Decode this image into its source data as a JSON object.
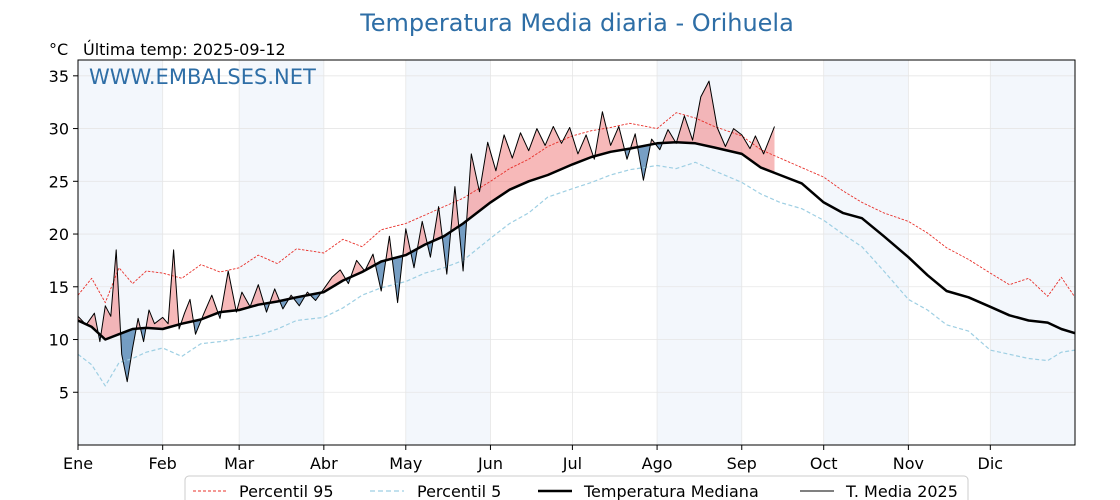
{
  "chart_data": {
    "type": "line",
    "title": "Temperatura Media diaria - Orihuela",
    "unit_label": "°C",
    "last_temp_label": "Última temp: 2025-09-12",
    "watermark": "WWW.EMBALSES.NET",
    "ylim": [
      0,
      36.5
    ],
    "xlim": [
      0,
      365
    ],
    "y_ticks": [
      5,
      10,
      15,
      20,
      25,
      30,
      35
    ],
    "months": [
      {
        "label": "Ene",
        "day": 0
      },
      {
        "label": "Feb",
        "day": 31
      },
      {
        "label": "Mar",
        "day": 59
      },
      {
        "label": "Abr",
        "day": 90
      },
      {
        "label": "May",
        "day": 120
      },
      {
        "label": "Jun",
        "day": 151
      },
      {
        "label": "Jul",
        "day": 181
      },
      {
        "label": "Ago",
        "day": 212
      },
      {
        "label": "Sep",
        "day": 243
      },
      {
        "label": "Oct",
        "day": 273
      },
      {
        "label": "Nov",
        "day": 304
      },
      {
        "label": "Dic",
        "day": 334
      }
    ],
    "shaded_month_indices": [
      0,
      2,
      4,
      7,
      9,
      11
    ],
    "grid": true,
    "legend_position": "bottom",
    "colors": {
      "p95": "#e8302a",
      "p5": "#9ecfe3",
      "median": "#000000",
      "current": "#000000",
      "above_fill": "#f08080",
      "below_fill": "#4a7fb0",
      "shade": "#f3f7fc",
      "title": "#2e6ea6"
    },
    "series": [
      {
        "name": "Percentil 95",
        "key": "p95",
        "x": [
          0,
          5,
          10,
          15,
          20,
          25,
          31,
          38,
          45,
          52,
          59,
          66,
          73,
          80,
          90,
          97,
          104,
          111,
          120,
          127,
          134,
          141,
          151,
          158,
          165,
          172,
          181,
          188,
          195,
          202,
          212,
          219,
          226,
          233,
          243,
          250,
          257,
          265,
          273,
          280,
          287,
          295,
          304,
          311,
          318,
          326,
          334,
          341,
          348,
          355,
          360,
          365
        ],
        "y": [
          14.2,
          15.8,
          13.5,
          16.8,
          15.3,
          16.5,
          16.3,
          15.8,
          17.1,
          16.4,
          16.8,
          18.0,
          17.2,
          18.6,
          18.2,
          19.5,
          18.8,
          20.4,
          21.0,
          21.8,
          22.6,
          23.4,
          25.0,
          26.2,
          27.1,
          28.3,
          29.3,
          29.8,
          30.1,
          30.5,
          30.0,
          31.5,
          31.0,
          30.2,
          29.3,
          28.0,
          27.2,
          26.3,
          25.4,
          24.1,
          23.0,
          22.0,
          21.2,
          20.1,
          18.7,
          17.6,
          16.3,
          15.2,
          15.8,
          14.1,
          15.9,
          14.0
        ]
      },
      {
        "name": "Percentil 5",
        "key": "p5",
        "x": [
          0,
          5,
          10,
          15,
          20,
          25,
          31,
          38,
          45,
          52,
          59,
          66,
          73,
          80,
          90,
          97,
          104,
          111,
          120,
          127,
          134,
          141,
          151,
          158,
          165,
          172,
          181,
          188,
          195,
          202,
          212,
          219,
          226,
          233,
          243,
          250,
          257,
          265,
          273,
          280,
          287,
          295,
          304,
          311,
          318,
          326,
          334,
          341,
          348,
          355,
          360,
          365
        ],
        "y": [
          8.6,
          7.6,
          5.6,
          7.8,
          8.2,
          8.8,
          9.2,
          8.4,
          9.6,
          9.8,
          10.1,
          10.4,
          11.0,
          11.8,
          12.1,
          13.0,
          14.2,
          14.9,
          15.5,
          16.3,
          16.8,
          17.5,
          19.6,
          21.0,
          22.0,
          23.5,
          24.3,
          24.9,
          25.6,
          26.1,
          26.5,
          26.2,
          26.8,
          26.0,
          24.9,
          23.8,
          23.0,
          22.4,
          21.3,
          20.0,
          18.8,
          16.5,
          13.8,
          12.8,
          11.4,
          10.8,
          9.0,
          8.6,
          8.2,
          8.0,
          8.8,
          9.0
        ]
      },
      {
        "name": "Temperatura Mediana",
        "key": "median",
        "x": [
          0,
          5,
          10,
          15,
          20,
          25,
          31,
          38,
          45,
          52,
          59,
          66,
          73,
          80,
          90,
          97,
          104,
          111,
          120,
          127,
          134,
          141,
          151,
          158,
          165,
          172,
          181,
          188,
          195,
          202,
          212,
          219,
          226,
          233,
          243,
          250,
          257,
          265,
          273,
          280,
          287,
          295,
          304,
          311,
          318,
          326,
          334,
          341,
          348,
          355,
          360,
          365
        ],
        "y": [
          11.8,
          11.2,
          10.0,
          10.5,
          11.0,
          11.1,
          11.0,
          11.5,
          11.9,
          12.6,
          12.8,
          13.3,
          13.6,
          14.0,
          14.5,
          15.6,
          16.4,
          17.4,
          18.0,
          19.0,
          19.8,
          21.0,
          23.0,
          24.2,
          25.0,
          25.6,
          26.6,
          27.3,
          27.8,
          28.1,
          28.6,
          28.7,
          28.6,
          28.2,
          27.6,
          26.3,
          25.6,
          24.8,
          23.0,
          22.0,
          21.5,
          19.8,
          17.8,
          16.1,
          14.6,
          14.0,
          13.1,
          12.3,
          11.8,
          11.6,
          11.0,
          10.6
        ]
      },
      {
        "name": "T. Media 2025",
        "key": "current",
        "x": [
          0,
          3,
          6,
          8,
          10,
          12,
          14,
          16,
          18,
          20,
          22,
          24,
          26,
          28,
          31,
          33,
          35,
          37,
          39,
          41,
          43,
          46,
          49,
          52,
          55,
          58,
          60,
          63,
          66,
          69,
          72,
          75,
          78,
          81,
          84,
          87,
          90,
          93,
          96,
          99,
          102,
          105,
          108,
          111,
          114,
          117,
          120,
          123,
          126,
          129,
          132,
          135,
          138,
          141,
          144,
          147,
          150,
          153,
          156,
          159,
          162,
          165,
          168,
          171,
          174,
          177,
          180,
          183,
          186,
          189,
          192,
          195,
          198,
          201,
          204,
          207,
          210,
          213,
          216,
          219,
          222,
          225,
          228,
          231,
          234,
          237,
          240,
          243,
          246,
          248,
          251,
          255
        ],
        "y": [
          12.2,
          11.4,
          12.5,
          9.8,
          13.2,
          12.2,
          18.5,
          8.6,
          6.0,
          9.2,
          12.0,
          9.8,
          12.8,
          11.5,
          12.1,
          11.5,
          18.5,
          11.0,
          12.5,
          13.8,
          10.5,
          12.4,
          14.2,
          12.0,
          16.5,
          12.6,
          14.5,
          13.1,
          15.2,
          12.6,
          14.8,
          12.9,
          14.2,
          13.2,
          14.5,
          13.7,
          14.8,
          15.9,
          16.6,
          15.3,
          17.5,
          16.5,
          18.1,
          14.6,
          19.8,
          13.5,
          20.5,
          16.8,
          21.2,
          17.8,
          22.6,
          16.2,
          24.5,
          16.5,
          27.6,
          24.0,
          28.7,
          26.0,
          29.4,
          27.2,
          29.6,
          27.9,
          30.0,
          28.4,
          30.2,
          28.6,
          30.1,
          27.6,
          29.4,
          27.1,
          31.6,
          28.4,
          30.2,
          27.1,
          29.5,
          25.1,
          29.0,
          28.0,
          29.9,
          28.6,
          31.2,
          28.9,
          33.0,
          34.5,
          30.1,
          28.3,
          30.0,
          29.4,
          28.1,
          29.3,
          27.6,
          30.2
        ]
      }
    ]
  }
}
